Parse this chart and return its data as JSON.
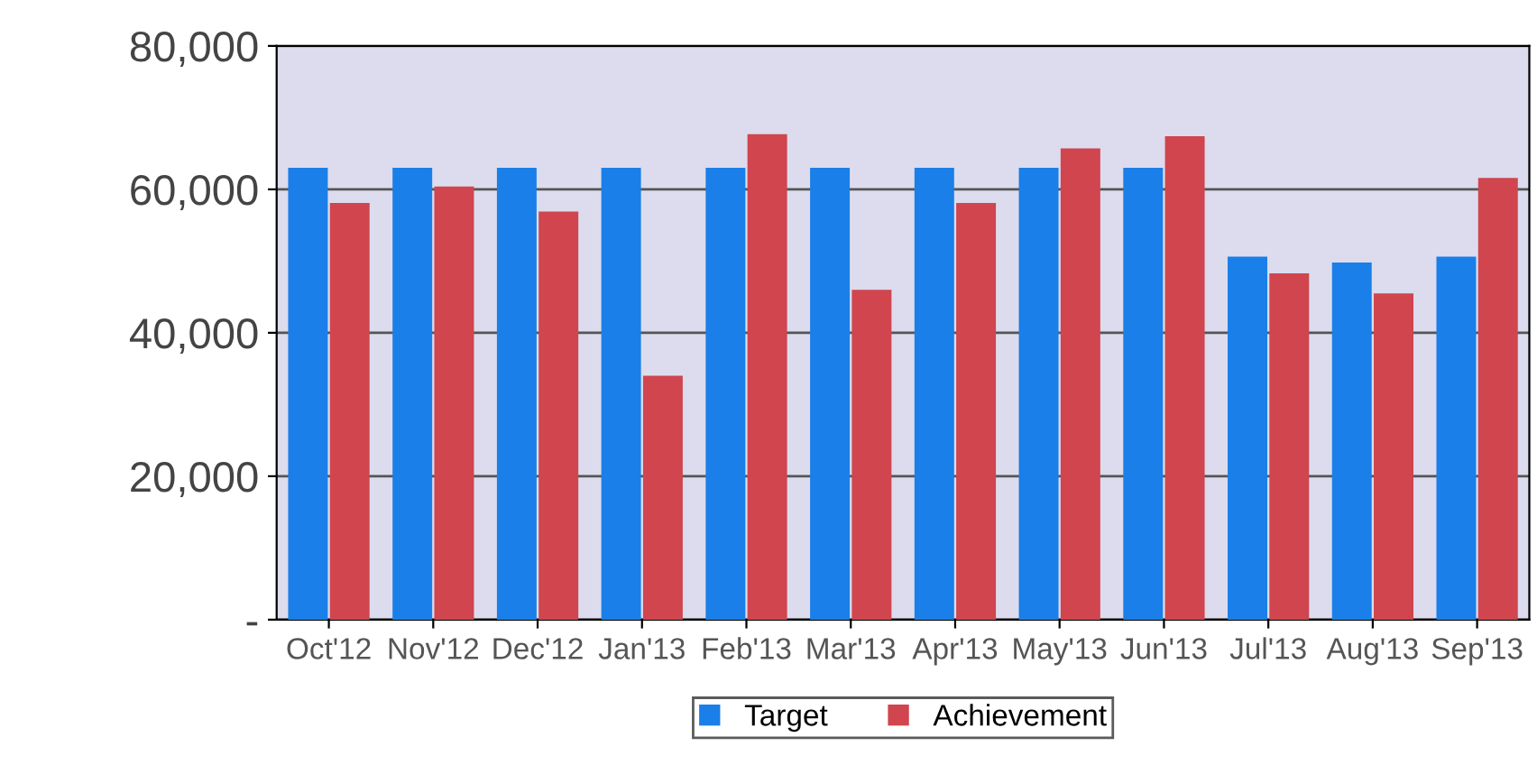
{
  "chart_data": {
    "type": "bar",
    "categories": [
      "Oct'12",
      "Nov'12",
      "Dec'12",
      "Jan'13",
      "Feb'13",
      "Mar'13",
      "Apr'13",
      "May'13",
      "Jun'13",
      "Jul'13",
      "Aug'13",
      "Sep'13"
    ],
    "series": [
      {
        "name": "Target",
        "color": "#1a7fe8",
        "values": [
          63000,
          63000,
          63000,
          63000,
          63000,
          63000,
          63000,
          63000,
          63000,
          50600,
          49800,
          50600
        ]
      },
      {
        "name": "Achievement",
        "color": "#d0454e",
        "values": [
          58100,
          60400,
          56900,
          34000,
          67700,
          46000,
          58100,
          65700,
          67400,
          48300,
          45500,
          61600
        ]
      }
    ],
    "ylim": [
      0,
      80000
    ],
    "yticks": [
      {
        "value": 0,
        "label": "-"
      },
      {
        "value": 20000,
        "label": "20,000"
      },
      {
        "value": 40000,
        "label": "40,000"
      },
      {
        "value": 60000,
        "label": "60,000"
      },
      {
        "value": 80000,
        "label": "80,000"
      }
    ],
    "grid": "y",
    "legend": "bottom"
  }
}
